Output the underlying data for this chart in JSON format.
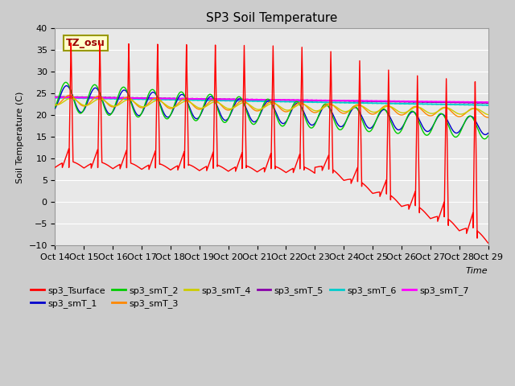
{
  "title": "SP3 Soil Temperature",
  "xlabel": "Time",
  "ylabel": "Soil Temperature (C)",
  "ylim": [
    -10,
    40
  ],
  "y_ticks": [
    -10,
    -5,
    0,
    5,
    10,
    15,
    20,
    25,
    30,
    35,
    40
  ],
  "x_tick_labels": [
    "Oct 14",
    "Oct 15",
    "Oct 16",
    "Oct 17",
    "Oct 18",
    "Oct 19",
    "Oct 20",
    "Oct 21",
    "Oct 22",
    "Oct 23",
    "Oct 24",
    "Oct 25",
    "Oct 26",
    "Oct 27",
    "Oct 28",
    "Oct 29"
  ],
  "annotation_text": "TZ_osu",
  "annotation_color": "#990000",
  "annotation_bg": "#ffffcc",
  "annotation_border": "#999900",
  "series_colors": {
    "sp3_Tsurface": "#ff0000",
    "sp3_smT_1": "#0000cc",
    "sp3_smT_2": "#00cc00",
    "sp3_smT_3": "#ff8800",
    "sp3_smT_4": "#cccc00",
    "sp3_smT_5": "#8800aa",
    "sp3_smT_6": "#00cccc",
    "sp3_smT_7": "#ff00ff"
  },
  "bg_color": "#cccccc",
  "plot_bg_color": "#e8e8e8",
  "grid_color": "#ffffff",
  "title_fontsize": 11,
  "label_fontsize": 8,
  "tick_fontsize": 8
}
